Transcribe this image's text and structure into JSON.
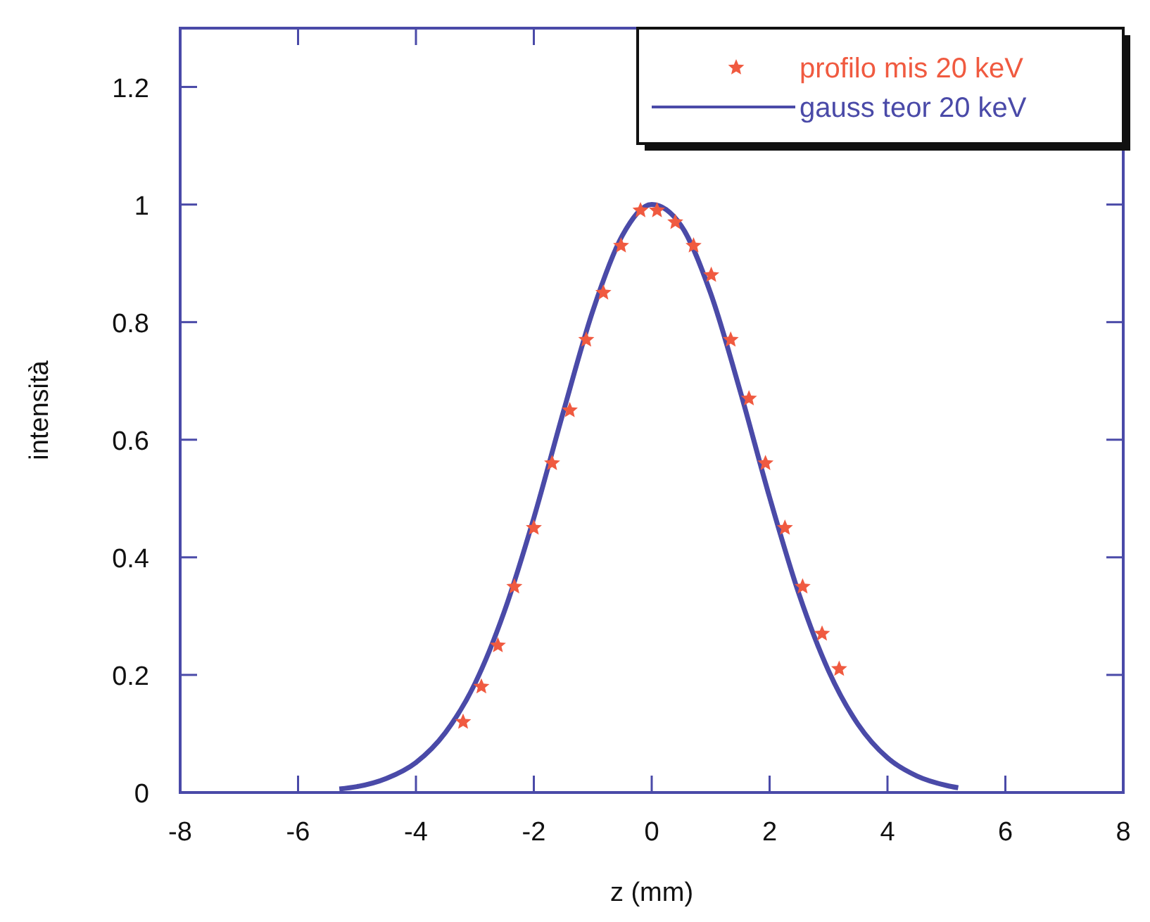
{
  "chart_data": {
    "type": "scatter",
    "xlabel": "z (mm)",
    "ylabel": "intensità",
    "xlim": [
      -8,
      8
    ],
    "ylim": [
      0,
      1.3
    ],
    "xticks": [
      -8,
      -6,
      -4,
      -2,
      0,
      2,
      4,
      6,
      8
    ],
    "yticks": [
      0,
      0.2,
      0.4,
      0.6,
      0.8,
      1,
      1.2
    ],
    "legend": "top right",
    "grid": false,
    "series": [
      {
        "name": "profilo mis 20 keV",
        "marker": "star",
        "color": "#f05a40",
        "x": [
          -3.2,
          -2.89,
          -2.61,
          -2.33,
          -2.0,
          -1.69,
          -1.39,
          -1.11,
          -0.82,
          -0.52,
          -0.19,
          0.09,
          0.4,
          0.71,
          1.01,
          1.34,
          1.65,
          1.93,
          2.26,
          2.56,
          2.89,
          3.18
        ],
        "values": [
          0.12,
          0.18,
          0.25,
          0.35,
          0.45,
          0.56,
          0.65,
          0.77,
          0.85,
          0.93,
          0.99,
          0.99,
          0.97,
          0.93,
          0.88,
          0.77,
          0.67,
          0.56,
          0.45,
          0.35,
          0.27,
          0.21
        ]
      },
      {
        "name": "gauss teor 20 keV",
        "type": "line",
        "line_style": "solid",
        "color": "#4a4aa8",
        "x": [
          -5.3,
          -5,
          -4.5,
          -4,
          -3.5,
          -3,
          -2.5,
          -2,
          -1.5,
          -1,
          -0.5,
          0,
          0.5,
          1,
          1.5,
          2,
          2.5,
          3,
          3.5,
          4,
          4.5,
          5,
          5.2
        ],
        "values": [
          0.006,
          0.01,
          0.024,
          0.051,
          0.102,
          0.185,
          0.308,
          0.467,
          0.647,
          0.819,
          0.947,
          1.0,
          0.964,
          0.849,
          0.683,
          0.502,
          0.337,
          0.207,
          0.116,
          0.059,
          0.028,
          0.012,
          0.008
        ]
      }
    ]
  }
}
